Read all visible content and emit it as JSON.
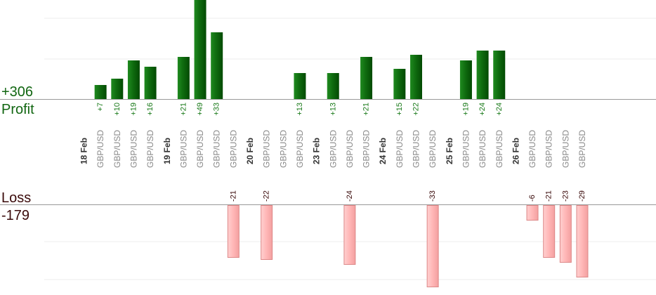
{
  "summary": {
    "profit_total": "+306",
    "profit_label": "Profit",
    "loss_label": "Loss",
    "loss_total": "-179"
  },
  "colors": {
    "profit_bar": "#0f6b0f",
    "profit_text": "#1a7a1a",
    "loss_bar": "#ffb6b6",
    "loss_bar_border": "#dd8888",
    "date_text": "#333333",
    "pair_text": "#888888",
    "axis": "#999999",
    "grid": "#eeeeee"
  },
  "chart_data": {
    "type": "bar",
    "profit_scale": 49,
    "loss_scale": 33,
    "columns": [
      {
        "kind": "date",
        "label": "18 Feb"
      },
      {
        "kind": "trade",
        "label": "GBP/USD",
        "profit": 7,
        "profit_label": "+7"
      },
      {
        "kind": "trade",
        "label": "GBP/USD",
        "profit": 10,
        "profit_label": "+10"
      },
      {
        "kind": "trade",
        "label": "GBP/USD",
        "profit": 19,
        "profit_label": "+19"
      },
      {
        "kind": "trade",
        "label": "GBP/USD",
        "profit": 16,
        "profit_label": "+16"
      },
      {
        "kind": "date",
        "label": "19 Feb"
      },
      {
        "kind": "trade",
        "label": "GBP/USD",
        "profit": 21,
        "profit_label": "+21"
      },
      {
        "kind": "trade",
        "label": "GBP/USD",
        "profit": 49,
        "profit_label": "+49"
      },
      {
        "kind": "trade",
        "label": "GBP/USD",
        "profit": 33,
        "profit_label": "+33"
      },
      {
        "kind": "trade",
        "label": "GBP/USD",
        "loss": 21,
        "loss_label": "-21"
      },
      {
        "kind": "date",
        "label": "20 Feb"
      },
      {
        "kind": "trade",
        "label": "GBP/USD",
        "loss": 22,
        "loss_label": "-22"
      },
      {
        "kind": "trade",
        "label": "GBP/USD"
      },
      {
        "kind": "trade",
        "label": "GBP/USD",
        "profit": 13,
        "profit_label": "+13"
      },
      {
        "kind": "date",
        "label": "23 Feb"
      },
      {
        "kind": "trade",
        "label": "GBP/USD",
        "profit": 13,
        "profit_label": "+13"
      },
      {
        "kind": "trade",
        "label": "GBP/USD",
        "loss": 24,
        "loss_label": "-24"
      },
      {
        "kind": "trade",
        "label": "GBP/USD",
        "profit": 21,
        "profit_label": "+21"
      },
      {
        "kind": "date",
        "label": "24 Feb"
      },
      {
        "kind": "trade",
        "label": "GBP/USD",
        "profit": 15,
        "profit_label": "+15"
      },
      {
        "kind": "trade",
        "label": "GBP/USD",
        "profit": 22,
        "profit_label": "+22"
      },
      {
        "kind": "trade",
        "label": "GBP/USD",
        "loss": 33,
        "loss_label": "-33"
      },
      {
        "kind": "date",
        "label": "25 Feb"
      },
      {
        "kind": "trade",
        "label": "GBP/USD",
        "profit": 19,
        "profit_label": "+19"
      },
      {
        "kind": "trade",
        "label": "GBP/USD",
        "profit": 24,
        "profit_label": "+24"
      },
      {
        "kind": "trade",
        "label": "GBP/USD",
        "profit": 24,
        "profit_label": "+24"
      },
      {
        "kind": "date",
        "label": "26 Feb"
      },
      {
        "kind": "trade",
        "label": "GBP/USD",
        "loss": 6,
        "loss_label": "-6"
      },
      {
        "kind": "trade",
        "label": "GBP/USD",
        "loss": 21,
        "loss_label": "-21"
      },
      {
        "kind": "trade",
        "label": "GBP/USD",
        "loss": 23,
        "loss_label": "-23"
      },
      {
        "kind": "trade",
        "label": "GBP/USD",
        "loss": 29,
        "loss_label": "-29"
      }
    ]
  }
}
